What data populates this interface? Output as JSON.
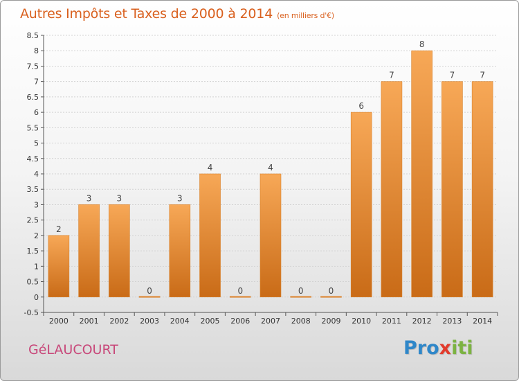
{
  "chart_data": {
    "type": "bar",
    "title": "Autres Impôts et Taxes de 2000 à 2014",
    "subtitle": "(en milliers d'€)",
    "xlabel": "",
    "ylabel": "",
    "categories": [
      "2000",
      "2001",
      "2002",
      "2003",
      "2004",
      "2005",
      "2006",
      "2007",
      "2008",
      "2009",
      "2010",
      "2011",
      "2012",
      "2013",
      "2014"
    ],
    "values": [
      2,
      3,
      3,
      0,
      3,
      4,
      0,
      4,
      0,
      0,
      6,
      7,
      8,
      7,
      7
    ],
    "data_labels": [
      "2",
      "3",
      "3",
      "0",
      "3",
      "4",
      "0",
      "4",
      "0",
      "0",
      "6",
      "7",
      "8",
      "7",
      "7"
    ],
    "ylim": [
      -0.5,
      8.5
    ],
    "yticks": [
      "-0.5",
      "0",
      "0.5",
      "1",
      "1.5",
      "2",
      "2.5",
      "3",
      "3.5",
      "4",
      "4.5",
      "5",
      "5.5",
      "6",
      "6.5",
      "7",
      "7.5",
      "8",
      "8.5"
    ],
    "ytick_values": [
      -0.5,
      0,
      0.5,
      1,
      1.5,
      2,
      2.5,
      3,
      3.5,
      4,
      4.5,
      5,
      5.5,
      6,
      6.5,
      7,
      7.5,
      8,
      8.5
    ],
    "grid": true,
    "legend": "none",
    "colors": {
      "bar_top": "#f7a857",
      "bar_bottom": "#c96b17",
      "title": "#d9601e",
      "commune": "#c8487a"
    }
  },
  "commune": "GéLAUCOURT",
  "logo": {
    "p1": "Pro",
    "p2": "x",
    "p3": "iti"
  }
}
